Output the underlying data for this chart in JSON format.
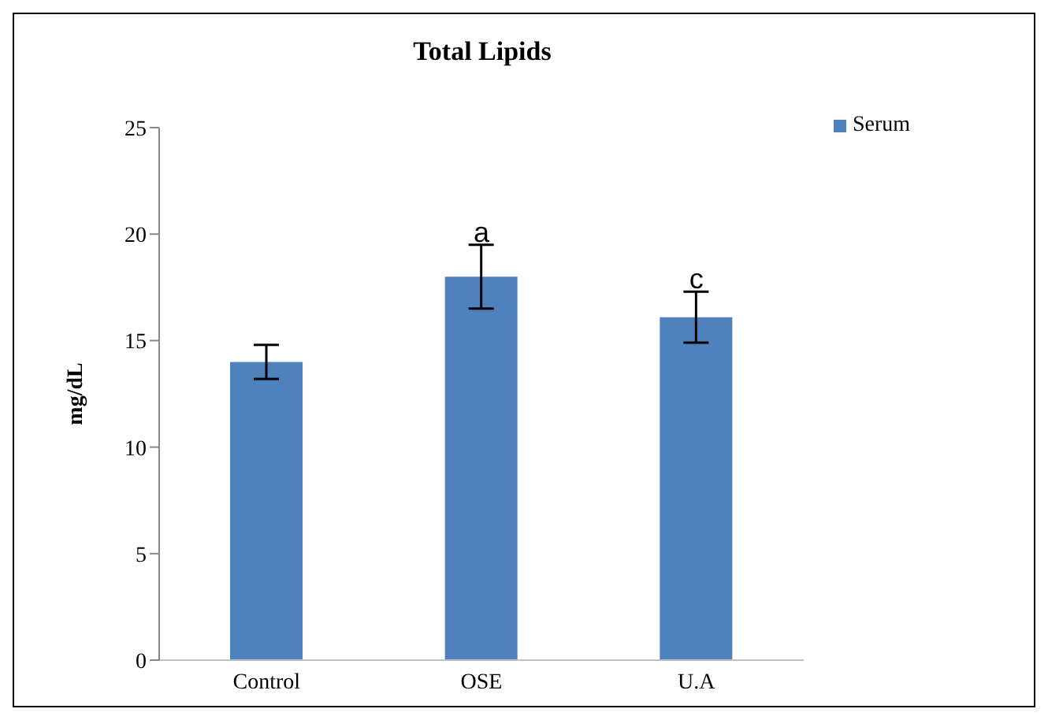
{
  "chart_data": {
    "type": "bar",
    "title": "Total Lipids",
    "ylabel": "mg/dL",
    "categories": [
      "Control",
      "OSE",
      "U.A"
    ],
    "series": [
      {
        "name": "Serum",
        "color": "#4f81bd",
        "values": [
          14.0,
          18.0,
          16.1
        ],
        "errors": [
          0.8,
          1.5,
          1.2
        ]
      }
    ],
    "ylim": [
      0,
      25
    ],
    "yticks": [
      0,
      5,
      10,
      15,
      20,
      25
    ],
    "grid": false,
    "legend": "top right",
    "annotations": [
      {
        "text": "a",
        "x": "OSE",
        "y": 19.5
      },
      {
        "text": "c",
        "x": "U.A",
        "y": 17.3
      }
    ]
  }
}
